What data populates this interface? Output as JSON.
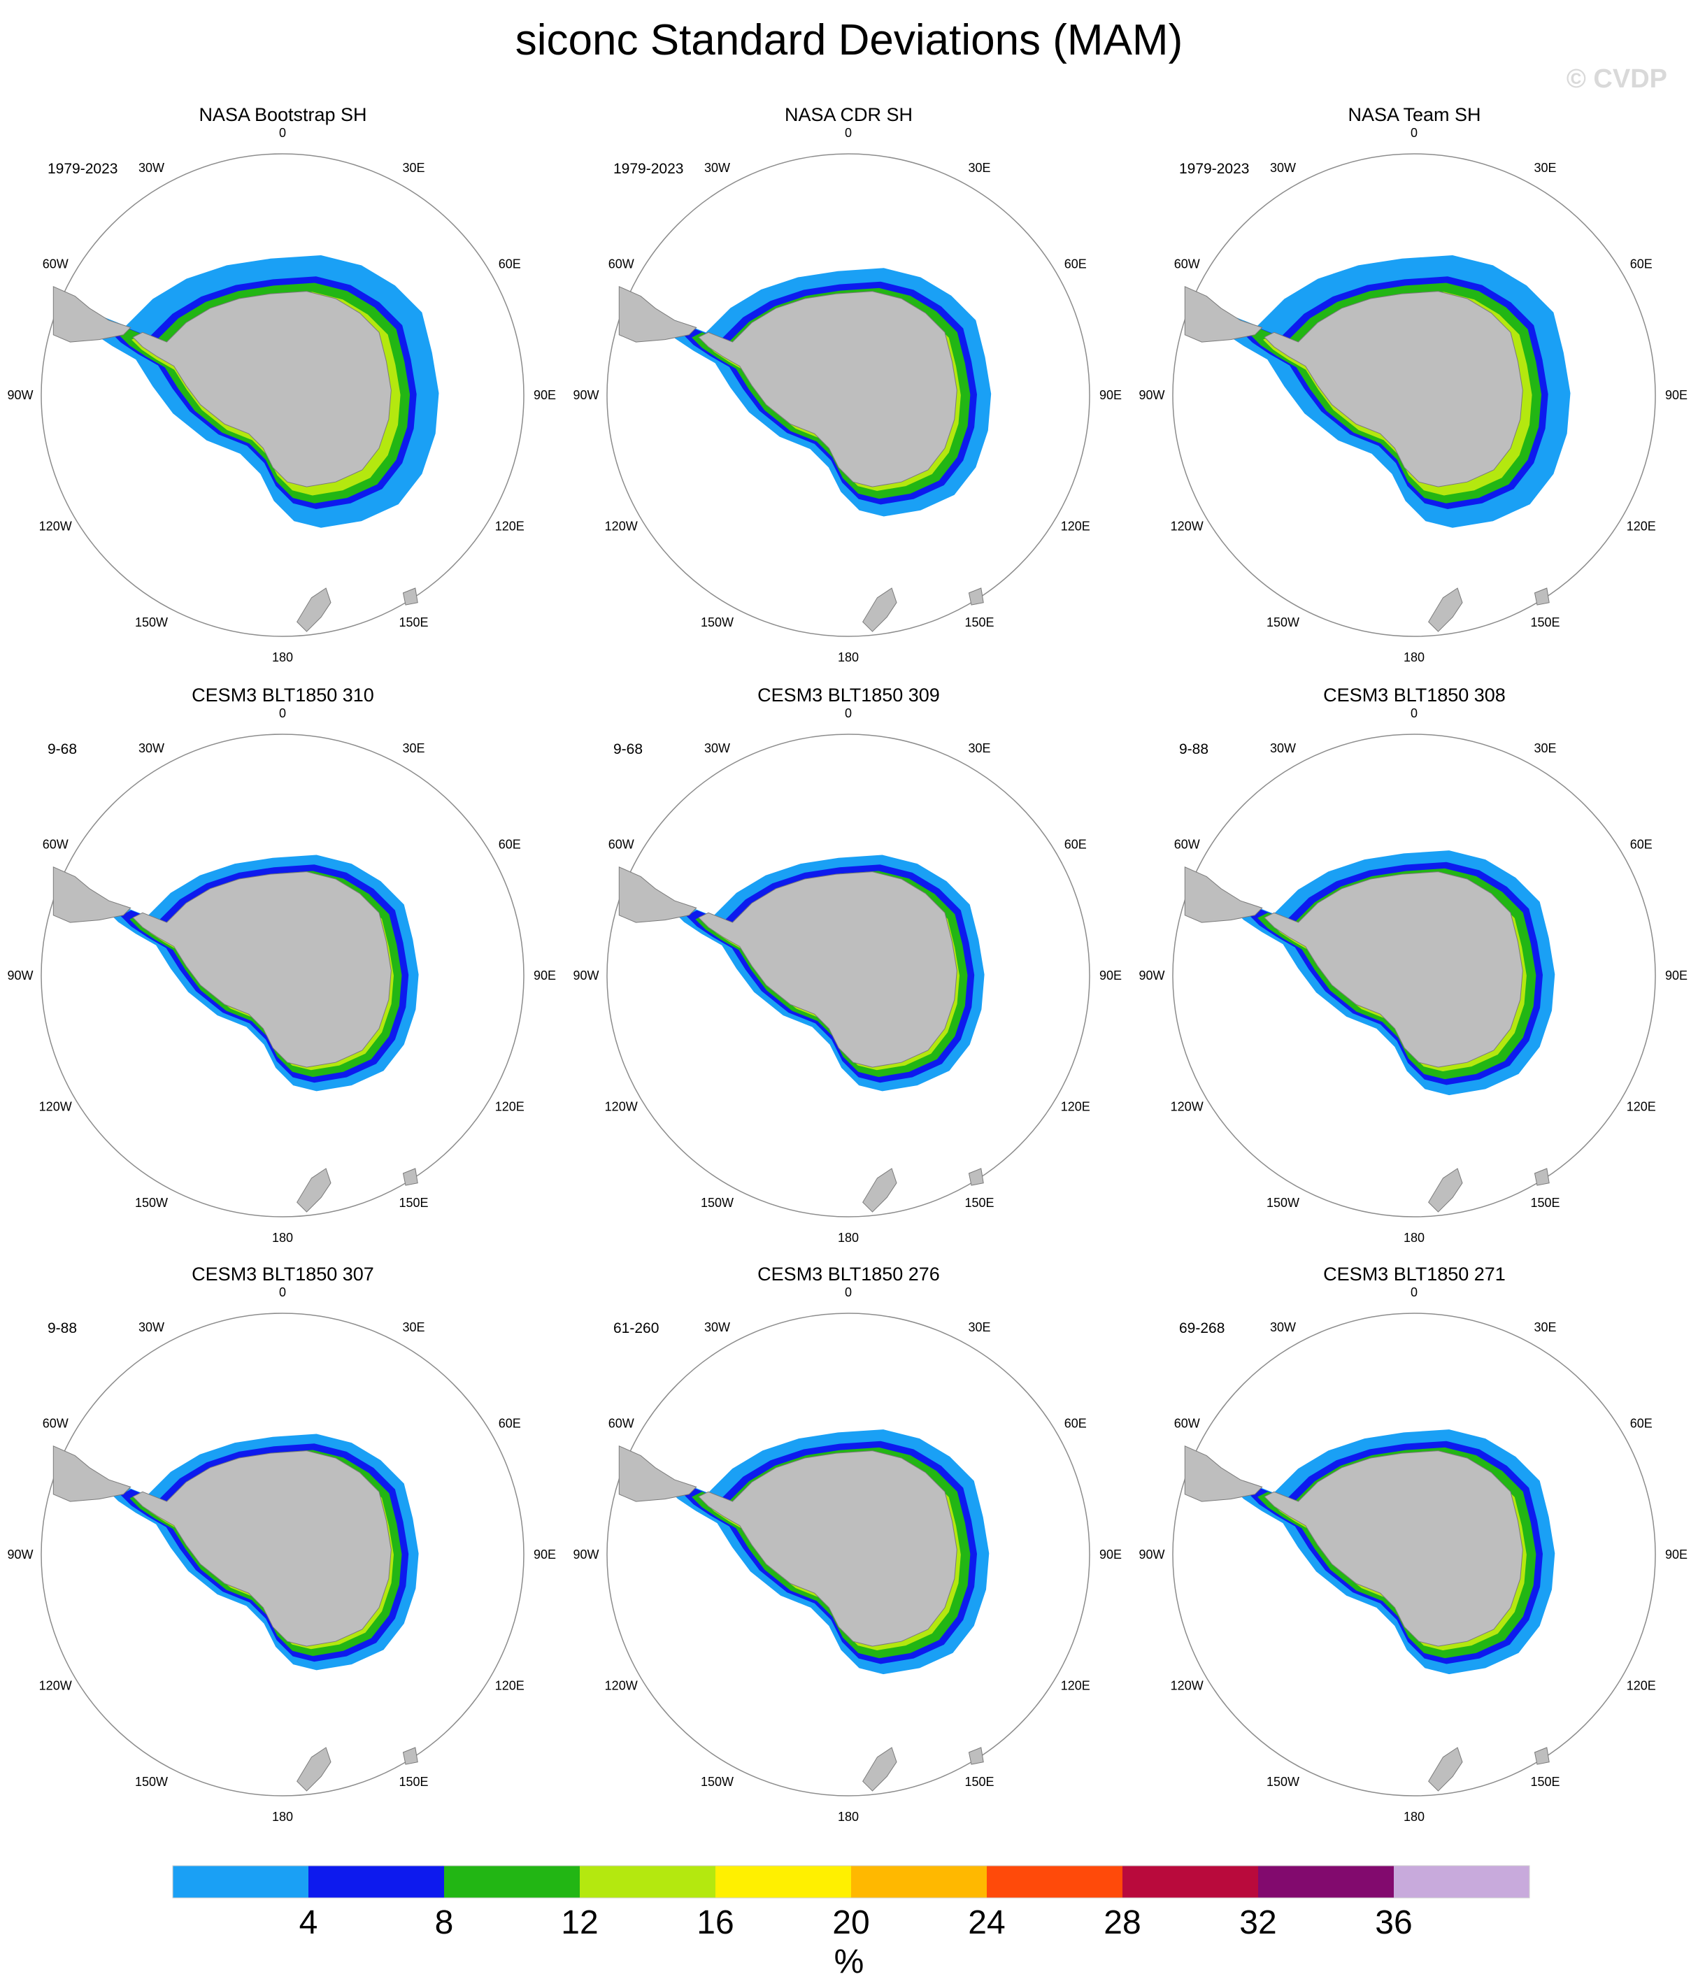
{
  "title": "siconc Standard Deviations (MAM)",
  "watermark": "© CVDP",
  "panels": [
    {
      "title": "NASA Bootstrap SH",
      "period": "1979-2023",
      "style": "obs-wide"
    },
    {
      "title": "NASA CDR SH",
      "period": "1979-2023",
      "style": "obs-narrow"
    },
    {
      "title": "NASA Team SH",
      "period": "1979-2023",
      "style": "obs-wide"
    },
    {
      "title": "CESM3 BLT1850 310",
      "period": "9-68",
      "style": "model"
    },
    {
      "title": "CESM3 BLT1850 309",
      "period": "9-68",
      "style": "model"
    },
    {
      "title": "CESM3 BLT1850 308",
      "period": "9-88",
      "style": "model-hot"
    },
    {
      "title": "CESM3 BLT1850 307",
      "period": "9-88",
      "style": "model"
    },
    {
      "title": "CESM3 BLT1850 276",
      "period": "61-260",
      "style": "model-hot"
    },
    {
      "title": "CESM3 BLT1850 271",
      "period": "69-268",
      "style": "model-hot"
    }
  ],
  "longitude_labels": [
    "0",
    "30E",
    "60E",
    "90E",
    "120E",
    "150E",
    "180",
    "150W",
    "120W",
    "90W",
    "60W",
    "30W"
  ],
  "colorbar": {
    "units": "%",
    "tick_labels": [
      "4",
      "8",
      "12",
      "16",
      "20",
      "24",
      "28",
      "32",
      "36"
    ],
    "colors": [
      "#1aa0f5",
      "#0d1aee",
      "#22b614",
      "#b4e80f",
      "#fff000",
      "#ffb800",
      "#ff4a0a",
      "#b90a3c",
      "#820a6e",
      "#c8aadc"
    ]
  },
  "land_color": "#bebebe"
}
